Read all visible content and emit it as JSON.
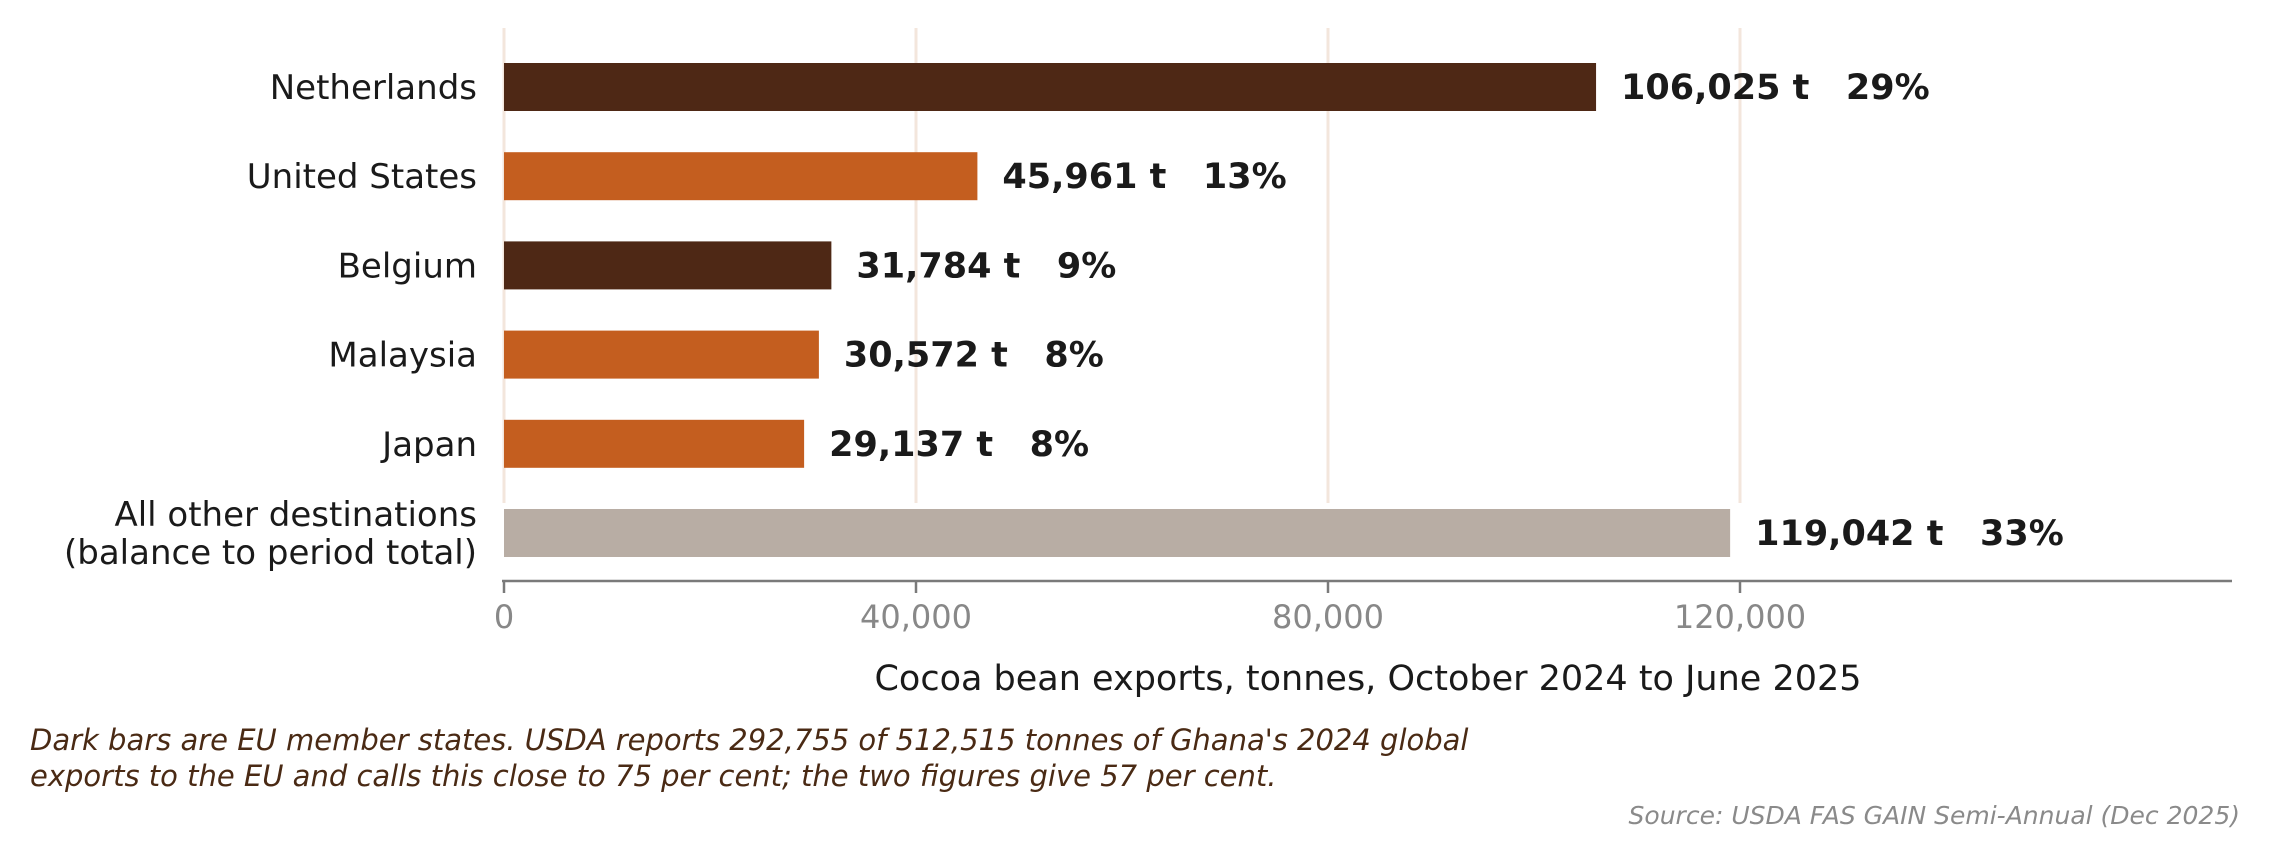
{
  "chart_data": {
    "type": "bar",
    "orientation": "horizontal",
    "categories": [
      "Netherlands",
      "United States",
      "Belgium",
      "Malaysia",
      "Japan",
      "All other destinations\n(balance to period total)"
    ],
    "values": [
      106025,
      45961,
      31784,
      30572,
      29137,
      119042
    ],
    "value_labels": [
      "106,025 t",
      "45,961 t",
      "31,784 t",
      "30,572 t",
      "29,137 t",
      "119,042 t"
    ],
    "share_labels": [
      "29%",
      "13%",
      "9%",
      "8%",
      "8%",
      "33%"
    ],
    "bar_colors": [
      "#4e2815",
      "#c45e1f",
      "#4e2815",
      "#c45e1f",
      "#c45e1f",
      "#b8ada4"
    ],
    "xlabel": "Cocoa bean exports, tonnes, October 2024 to June 2025",
    "xticks": [
      0,
      40000,
      80000,
      120000
    ],
    "xtick_labels": [
      "0",
      "40,000",
      "80,000",
      "120,000"
    ],
    "xlim": [
      0,
      168000
    ],
    "grid": "vertical",
    "grid_color": "#f3e6dc",
    "legend": "none"
  },
  "note": {
    "line1": "Dark bars are EU member states. USDA reports 292,755 of 512,515 tonnes of Ghana's 2024 global",
    "line2": "exports to the EU and calls this close to 75 per cent; the two figures give 57 per cent."
  },
  "source": "Source: USDA FAS GAIN Semi-Annual (Dec 2025)"
}
